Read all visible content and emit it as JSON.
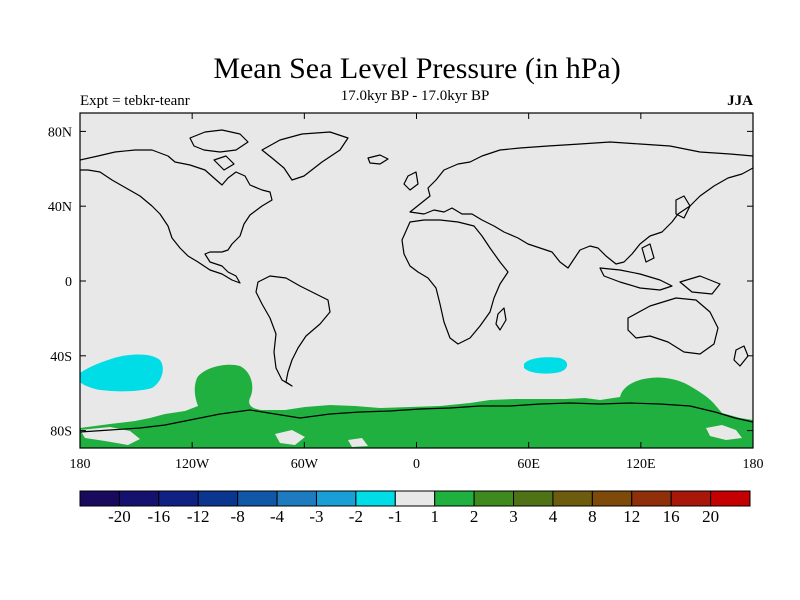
{
  "title": "Mean Sea Level Pressure (in hPa)",
  "subtitle": "17.0kyr BP - 17.0kyr BP",
  "experiment": "Expt = tebkr-teanr",
  "season": "JJA",
  "map": {
    "background_color": "#e8e8e8",
    "lon_ticks": [
      "180",
      "120W",
      "60W",
      "0",
      "60E",
      "120E",
      "180"
    ],
    "lat_ticks": [
      "80N",
      "40N",
      "0",
      "40S",
      "80S"
    ]
  },
  "colorbar": {
    "colors": [
      "#1a0a5e",
      "#14126e",
      "#0f2284",
      "#0a3690",
      "#1057a8",
      "#1f7bc0",
      "#1a9ed6",
      "#00dde6",
      "#e8e8e8",
      "#20b040",
      "#3f8a1e",
      "#4f7216",
      "#6e5c0e",
      "#7d4a0a",
      "#90300a",
      "#a8180a",
      "#c40000"
    ],
    "labels": [
      "-20",
      "-16",
      "-12",
      "-8",
      "-4",
      "-3",
      "-2",
      "-1",
      "1",
      "2",
      "3",
      "4",
      "8",
      "12",
      "16",
      "20"
    ]
  },
  "anomaly_regions": [
    {
      "name": "negative-anomaly-south-pacific",
      "category": "-2 to -1",
      "color": "#00dde6"
    },
    {
      "name": "negative-anomaly-south-indian",
      "category": "-2 to -1",
      "color": "#00dde6"
    },
    {
      "name": "positive-anomaly-southern-ocean",
      "category": "1 to 2",
      "color": "#20b040"
    }
  ]
}
